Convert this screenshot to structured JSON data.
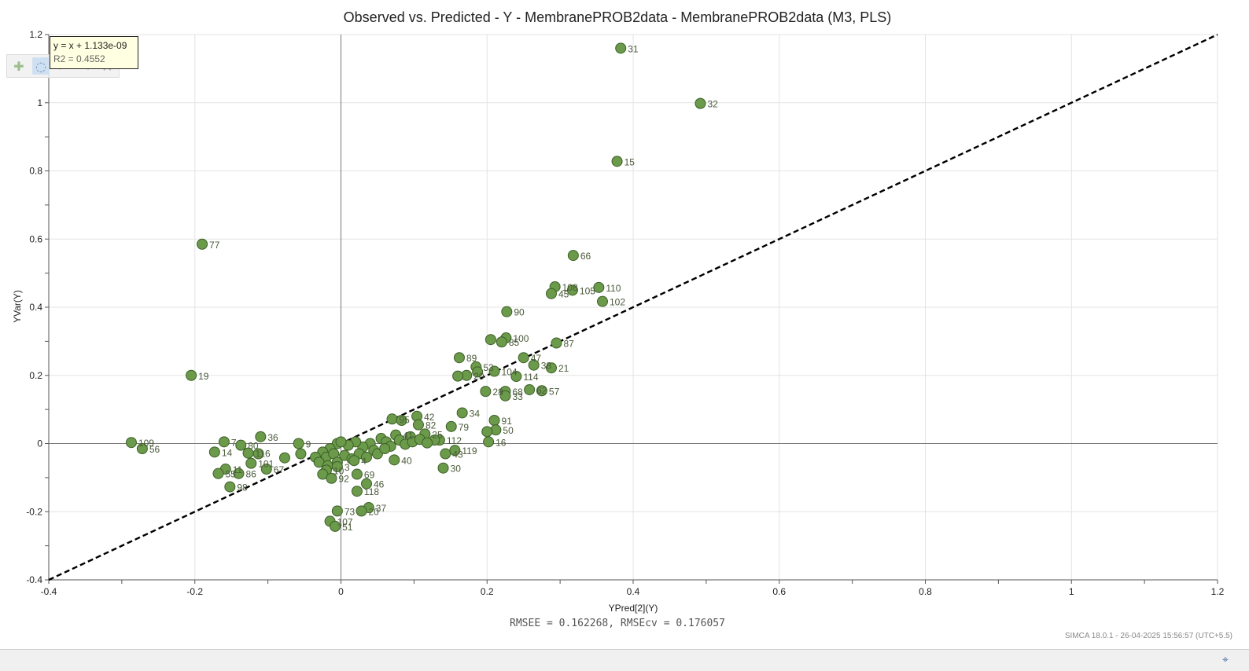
{
  "window": {
    "status_icon": "crosshair-icon",
    "toolbar": [
      {
        "name": "add-icon",
        "glyph": "✚",
        "state": "normal"
      },
      {
        "name": "select-icon",
        "glyph": "◌",
        "state": "active"
      },
      {
        "name": "zoom-icon",
        "glyph": "⌕",
        "state": "dim"
      },
      {
        "name": "brush-icon",
        "glyph": "✎",
        "state": "dim"
      },
      {
        "name": "tools-icon",
        "glyph": "⚒",
        "state": "dim"
      }
    ]
  },
  "regression_box": {
    "equation": "y = x + 1.133e-09",
    "r2": "R2 = 0.4552"
  },
  "footer": {
    "stats": "RMSEE = 0.162268, RMSEcv = 0.176057",
    "stamp": "SIMCA 18.0.1 - 26-04-2025 15:56:57 (UTC+5.5)"
  },
  "chart_data": {
    "type": "scatter",
    "title": "Observed vs. Predicted - Y - MembranePROB2data - MembranePROB2data (M3, PLS)",
    "xlabel": "YPred[2](Y)",
    "ylabel": "YVar(Y)",
    "xlim": [
      -0.4,
      1.2
    ],
    "ylim": [
      -0.4,
      1.2
    ],
    "xticks": [
      -0.4,
      -0.2,
      0,
      0.2,
      0.4,
      0.6,
      0.8,
      1,
      1.2
    ],
    "yticks": [
      -0.4,
      -0.2,
      0,
      0.2,
      0.4,
      0.6,
      0.8,
      1,
      1.2
    ],
    "xtick_labels": [
      "-0.4",
      "-0.2",
      "0",
      "0.2",
      "0.4",
      "0.6",
      "0.8",
      "1",
      "1.2"
    ],
    "ytick_labels": [
      "-0.4",
      "-0.2",
      "0",
      "0.2",
      "0.4",
      "0.6",
      "0.8",
      "1",
      "1.2"
    ],
    "grid": true,
    "marker_color": "#6a9a4a",
    "marker_edge": "#3d5f28",
    "line_color": "#000000",
    "fit_line": {
      "slope": 1,
      "intercept": 0
    },
    "points": [
      {
        "label": "31",
        "x": 0.383,
        "y": 1.16
      },
      {
        "label": "32",
        "x": 0.492,
        "y": 0.998
      },
      {
        "label": "15",
        "x": 0.378,
        "y": 0.828
      },
      {
        "label": "77",
        "x": -0.19,
        "y": 0.585
      },
      {
        "label": "66",
        "x": 0.318,
        "y": 0.552
      },
      {
        "label": "108",
        "x": 0.293,
        "y": 0.46
      },
      {
        "label": "45",
        "x": 0.288,
        "y": 0.44
      },
      {
        "label": "105",
        "x": 0.317,
        "y": 0.45
      },
      {
        "label": "110",
        "x": 0.353,
        "y": 0.458
      },
      {
        "label": "102",
        "x": 0.358,
        "y": 0.417
      },
      {
        "label": "90",
        "x": 0.227,
        "y": 0.387
      },
      {
        "label": "100",
        "x": 0.226,
        "y": 0.31
      },
      {
        "label": "85",
        "x": 0.22,
        "y": 0.298
      },
      {
        "label": "",
        "x": 0.205,
        "y": 0.305
      },
      {
        "label": "87",
        "x": 0.295,
        "y": 0.295
      },
      {
        "label": "89",
        "x": 0.162,
        "y": 0.252
      },
      {
        "label": "47",
        "x": 0.25,
        "y": 0.252
      },
      {
        "label": "38",
        "x": 0.264,
        "y": 0.23
      },
      {
        "label": "21",
        "x": 0.288,
        "y": 0.222
      },
      {
        "label": "53",
        "x": 0.185,
        "y": 0.225
      },
      {
        "label": "104",
        "x": 0.21,
        "y": 0.212
      },
      {
        "label": "",
        "x": 0.187,
        "y": 0.21
      },
      {
        "label": "20",
        "x": 0.172,
        "y": 0.2
      },
      {
        "label": "",
        "x": 0.16,
        "y": 0.198
      },
      {
        "label": "114",
        "x": 0.24,
        "y": 0.197
      },
      {
        "label": "19",
        "x": -0.205,
        "y": 0.2
      },
      {
        "label": "28",
        "x": 0.198,
        "y": 0.153
      },
      {
        "label": "68",
        "x": 0.225,
        "y": 0.153
      },
      {
        "label": "33",
        "x": 0.225,
        "y": 0.14
      },
      {
        "label": "62",
        "x": 0.258,
        "y": 0.158
      },
      {
        "label": "57",
        "x": 0.275,
        "y": 0.155
      },
      {
        "label": "34",
        "x": 0.166,
        "y": 0.09
      },
      {
        "label": "42",
        "x": 0.104,
        "y": 0.08
      },
      {
        "label": "95",
        "x": 0.07,
        "y": 0.072
      },
      {
        "label": "",
        "x": 0.083,
        "y": 0.068
      },
      {
        "label": "91",
        "x": 0.21,
        "y": 0.068
      },
      {
        "label": "82",
        "x": 0.106,
        "y": 0.055
      },
      {
        "label": "79",
        "x": 0.151,
        "y": 0.05
      },
      {
        "label": "50",
        "x": 0.212,
        "y": 0.04
      },
      {
        "label": "",
        "x": 0.2,
        "y": 0.035
      },
      {
        "label": "41",
        "x": 0.075,
        "y": 0.025
      },
      {
        "label": "25",
        "x": 0.115,
        "y": 0.028
      },
      {
        "label": "",
        "x": 0.095,
        "y": 0.02
      },
      {
        "label": "112",
        "x": 0.135,
        "y": 0.01
      },
      {
        "label": "",
        "x": 0.128,
        "y": 0.01
      },
      {
        "label": "16",
        "x": 0.202,
        "y": 0.005
      },
      {
        "label": "",
        "x": 0.055,
        "y": 0.015
      },
      {
        "label": "",
        "x": 0.062,
        "y": 0.005
      },
      {
        "label": "",
        "x": 0.08,
        "y": 0.01
      },
      {
        "label": "",
        "x": 0.088,
        "y": -0.002
      },
      {
        "label": "",
        "x": 0.098,
        "y": 0.005
      },
      {
        "label": "",
        "x": 0.108,
        "y": 0.012
      },
      {
        "label": "",
        "x": 0.118,
        "y": 0.002
      },
      {
        "label": "",
        "x": 0.068,
        "y": -0.008
      },
      {
        "label": "",
        "x": 0.04,
        "y": 0.0
      },
      {
        "label": "",
        "x": 0.03,
        "y": -0.01
      },
      {
        "label": "",
        "x": 0.02,
        "y": 0.005
      },
      {
        "label": "",
        "x": 0.01,
        "y": -0.005
      },
      {
        "label": "",
        "x": -0.005,
        "y": 0.0
      },
      {
        "label": "",
        "x": 0.0,
        "y": 0.005
      },
      {
        "label": "",
        "x": -0.015,
        "y": -0.015
      },
      {
        "label": "",
        "x": -0.025,
        "y": -0.025
      },
      {
        "label": "",
        "x": -0.035,
        "y": -0.04
      },
      {
        "label": "",
        "x": -0.02,
        "y": -0.04
      },
      {
        "label": "",
        "x": -0.01,
        "y": -0.03
      },
      {
        "label": "",
        "x": 0.005,
        "y": -0.035
      },
      {
        "label": "",
        "x": 0.015,
        "y": -0.045
      },
      {
        "label": "",
        "x": 0.025,
        "y": -0.03
      },
      {
        "label": "",
        "x": 0.045,
        "y": -0.02
      },
      {
        "label": "",
        "x": -0.03,
        "y": -0.055
      },
      {
        "label": "",
        "x": -0.018,
        "y": -0.065
      },
      {
        "label": "",
        "x": -0.005,
        "y": -0.055
      },
      {
        "label": "4",
        "x": 0.018,
        "y": -0.05
      },
      {
        "label": "",
        "x": 0.035,
        "y": -0.04
      },
      {
        "label": "",
        "x": 0.05,
        "y": -0.03
      },
      {
        "label": "",
        "x": 0.06,
        "y": -0.015
      },
      {
        "label": "9",
        "x": -0.058,
        "y": 0.0
      },
      {
        "label": "",
        "x": -0.055,
        "y": -0.03
      },
      {
        "label": "43",
        "x": 0.143,
        "y": -0.03
      },
      {
        "label": "119",
        "x": 0.156,
        "y": -0.02
      },
      {
        "label": "40",
        "x": 0.073,
        "y": -0.048
      },
      {
        "label": "36",
        "x": -0.11,
        "y": 0.02
      },
      {
        "label": "7",
        "x": -0.16,
        "y": 0.005
      },
      {
        "label": "80",
        "x": -0.137,
        "y": -0.005
      },
      {
        "label": "116",
        "x": -0.127,
        "y": -0.028
      },
      {
        "label": "",
        "x": -0.113,
        "y": -0.03
      },
      {
        "label": "14",
        "x": -0.173,
        "y": -0.025
      },
      {
        "label": "109",
        "x": -0.287,
        "y": 0.003
      },
      {
        "label": "56",
        "x": -0.272,
        "y": -0.015
      },
      {
        "label": "101",
        "x": -0.123,
        "y": -0.058
      },
      {
        "label": "",
        "x": -0.077,
        "y": -0.042
      },
      {
        "label": "67",
        "x": -0.102,
        "y": -0.075
      },
      {
        "label": "11",
        "x": -0.158,
        "y": -0.075
      },
      {
        "label": "55",
        "x": -0.168,
        "y": -0.088
      },
      {
        "label": "86",
        "x": -0.14,
        "y": -0.088
      },
      {
        "label": "98",
        "x": -0.152,
        "y": -0.127
      },
      {
        "label": "3",
        "x": -0.005,
        "y": -0.068
      },
      {
        "label": "10",
        "x": -0.02,
        "y": -0.078
      },
      {
        "label": "",
        "x": -0.025,
        "y": -0.09
      },
      {
        "label": "92",
        "x": -0.013,
        "y": -0.102
      },
      {
        "label": "69",
        "x": 0.022,
        "y": -0.09
      },
      {
        "label": "46",
        "x": 0.035,
        "y": -0.118
      },
      {
        "label": "118",
        "x": 0.022,
        "y": -0.14
      },
      {
        "label": "30",
        "x": 0.14,
        "y": -0.072
      },
      {
        "label": "37",
        "x": 0.038,
        "y": -0.188
      },
      {
        "label": "20",
        "x": 0.028,
        "y": -0.198
      },
      {
        "label": "73",
        "x": -0.005,
        "y": -0.198
      },
      {
        "label": "107",
        "x": -0.015,
        "y": -0.228
      },
      {
        "label": "51",
        "x": -0.008,
        "y": -0.243
      }
    ]
  }
}
